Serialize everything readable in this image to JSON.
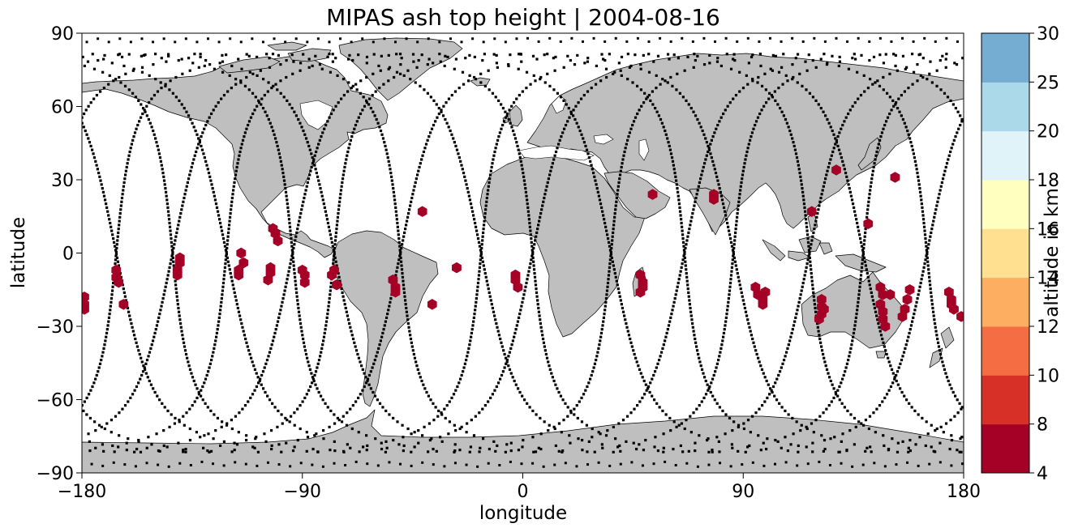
{
  "title": "MIPAS ash top height | 2004-08-16",
  "colors": {
    "land": "#bfbfbf",
    "coast": "#000000",
    "track": "#000000",
    "ash": "#a50026"
  },
  "chart_data": {
    "type": "scatter",
    "title": "MIPAS ash top height | 2004-08-16",
    "xlabel": "longitude",
    "ylabel": "latitude",
    "xlim": [
      -180,
      180
    ],
    "ylim": [
      -90,
      90
    ],
    "xticks": [
      -180,
      -90,
      0,
      90,
      180
    ],
    "xtick_labels": [
      "−180",
      "−90",
      "0",
      "90",
      "180"
    ],
    "yticks": [
      -90,
      -60,
      -30,
      0,
      30,
      60,
      90
    ],
    "ytick_labels": [
      "−90",
      "−60",
      "−30",
      "0",
      "30",
      "60",
      "90"
    ],
    "colorbar": {
      "label": "altitude in km",
      "bounds": [
        4,
        8,
        10,
        12,
        14,
        16,
        18,
        20,
        25,
        30
      ],
      "tick_labels": [
        "4",
        "8",
        "10",
        "12",
        "14",
        "16",
        "18",
        "20",
        "25",
        "30"
      ],
      "colors": [
        "#a50026",
        "#d73027",
        "#f46d43",
        "#fdae61",
        "#fee090",
        "#ffffbf",
        "#e0f3f8",
        "#abd9e9",
        "#74add1",
        "#4575b4",
        "#313695"
      ]
    },
    "orbit_track_longitudes_at_equator": [
      -166,
      -143,
      -121,
      -94,
      -77,
      -50,
      -17,
      4,
      36,
      66,
      86,
      117,
      139,
      165
    ],
    "ash_points": [
      {
        "lon": -179,
        "lat": -18,
        "alt_km": 6
      },
      {
        "lon": -179,
        "lat": -21,
        "alt_km": 6
      },
      {
        "lon": -179,
        "lat": -23,
        "alt_km": 6
      },
      {
        "lon": -166,
        "lat": -7,
        "alt_km": 6
      },
      {
        "lon": -166,
        "lat": -10,
        "alt_km": 6
      },
      {
        "lon": -165,
        "lat": -12,
        "alt_km": 6
      },
      {
        "lon": -163,
        "lat": -21,
        "alt_km": 6
      },
      {
        "lon": -140,
        "lat": -2,
        "alt_km": 6
      },
      {
        "lon": -140,
        "lat": -4,
        "alt_km": 6
      },
      {
        "lon": -141,
        "lat": -7,
        "alt_km": 6
      },
      {
        "lon": -141,
        "lat": -9,
        "alt_km": 6
      },
      {
        "lon": -115,
        "lat": 0,
        "alt_km": 6
      },
      {
        "lon": -114,
        "lat": -4,
        "alt_km": 6
      },
      {
        "lon": -116,
        "lat": -7,
        "alt_km": 6
      },
      {
        "lon": -116,
        "lat": -9,
        "alt_km": 6
      },
      {
        "lon": -102,
        "lat": 10,
        "alt_km": 6
      },
      {
        "lon": -101,
        "lat": 8,
        "alt_km": 6
      },
      {
        "lon": -100,
        "lat": 5,
        "alt_km": 6
      },
      {
        "lon": -103,
        "lat": -6,
        "alt_km": 6
      },
      {
        "lon": -103,
        "lat": -8,
        "alt_km": 6
      },
      {
        "lon": -104,
        "lat": -11,
        "alt_km": 6
      },
      {
        "lon": -90,
        "lat": -7,
        "alt_km": 6
      },
      {
        "lon": -89,
        "lat": -9,
        "alt_km": 6
      },
      {
        "lon": -89,
        "lat": -12,
        "alt_km": 6
      },
      {
        "lon": -77,
        "lat": -7,
        "alt_km": 6
      },
      {
        "lon": -78,
        "lat": -9,
        "alt_km": 6
      },
      {
        "lon": -76,
        "lat": -13,
        "alt_km": 6
      },
      {
        "lon": -53,
        "lat": -11,
        "alt_km": 6
      },
      {
        "lon": -52,
        "lat": -14,
        "alt_km": 6
      },
      {
        "lon": -52,
        "lat": -16,
        "alt_km": 6
      },
      {
        "lon": -41,
        "lat": 17,
        "alt_km": 6
      },
      {
        "lon": -37,
        "lat": -21,
        "alt_km": 6
      },
      {
        "lon": -27,
        "lat": -6,
        "alt_km": 6
      },
      {
        "lon": -3,
        "lat": -9,
        "alt_km": 6
      },
      {
        "lon": -3,
        "lat": -11,
        "alt_km": 6
      },
      {
        "lon": -2,
        "lat": -14,
        "alt_km": 6
      },
      {
        "lon": 53,
        "lat": 24,
        "alt_km": 6
      },
      {
        "lon": 48,
        "lat": -9,
        "alt_km": 6
      },
      {
        "lon": 49,
        "lat": -12,
        "alt_km": 6
      },
      {
        "lon": 49,
        "lat": -14,
        "alt_km": 6
      },
      {
        "lon": 48,
        "lat": -16,
        "alt_km": 6
      },
      {
        "lon": 78,
        "lat": 24,
        "alt_km": 6
      },
      {
        "lon": 78,
        "lat": 22,
        "alt_km": 6
      },
      {
        "lon": 95,
        "lat": -14,
        "alt_km": 6
      },
      {
        "lon": 96,
        "lat": -17,
        "alt_km": 6
      },
      {
        "lon": 98,
        "lat": -19,
        "alt_km": 6
      },
      {
        "lon": 98,
        "lat": -21,
        "alt_km": 6
      },
      {
        "lon": 99,
        "lat": -16,
        "alt_km": 6
      },
      {
        "lon": 118,
        "lat": 17,
        "alt_km": 6
      },
      {
        "lon": 128,
        "lat": 34,
        "alt_km": 6
      },
      {
        "lon": 141,
        "lat": 12,
        "alt_km": 6
      },
      {
        "lon": 152,
        "lat": 31,
        "alt_km": 6
      },
      {
        "lon": 122,
        "lat": -19,
        "alt_km": 6
      },
      {
        "lon": 122,
        "lat": -22,
        "alt_km": 6
      },
      {
        "lon": 122,
        "lat": -25,
        "alt_km": 6
      },
      {
        "lon": 121,
        "lat": -27,
        "alt_km": 6
      },
      {
        "lon": 123,
        "lat": -23,
        "alt_km": 6
      },
      {
        "lon": 146,
        "lat": -14,
        "alt_km": 6
      },
      {
        "lon": 147,
        "lat": -17,
        "alt_km": 6
      },
      {
        "lon": 146,
        "lat": -21,
        "alt_km": 6
      },
      {
        "lon": 147,
        "lat": -24,
        "alt_km": 6
      },
      {
        "lon": 147,
        "lat": -27,
        "alt_km": 6
      },
      {
        "lon": 148,
        "lat": -30,
        "alt_km": 6
      },
      {
        "lon": 150,
        "lat": -17,
        "alt_km": 6
      },
      {
        "lon": 155,
        "lat": -26,
        "alt_km": 6
      },
      {
        "lon": 156,
        "lat": -23,
        "alt_km": 6
      },
      {
        "lon": 157,
        "lat": -19,
        "alt_km": 6
      },
      {
        "lon": 158,
        "lat": -15,
        "alt_km": 6
      },
      {
        "lon": 174,
        "lat": -16,
        "alt_km": 6
      },
      {
        "lon": 175,
        "lat": -19,
        "alt_km": 6
      },
      {
        "lon": 175,
        "lat": -21,
        "alt_km": 6
      },
      {
        "lon": 176,
        "lat": -23,
        "alt_km": 6
      },
      {
        "lon": 179,
        "lat": -26,
        "alt_km": 6
      }
    ]
  }
}
